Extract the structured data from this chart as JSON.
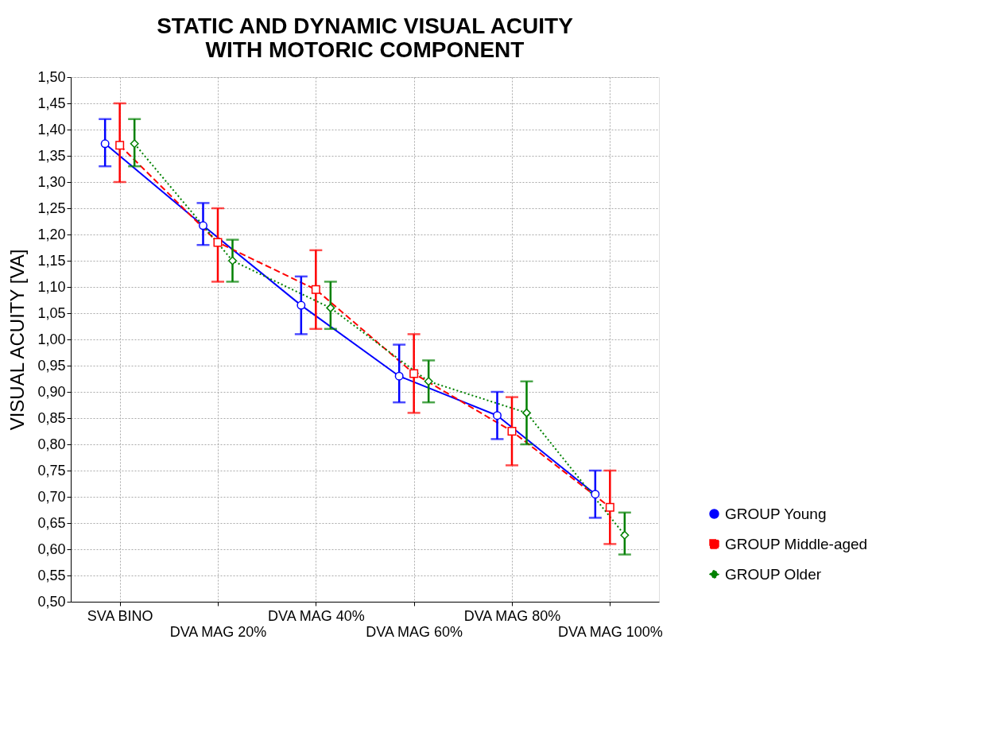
{
  "chart_data": {
    "type": "line",
    "title": "STATIC AND DYNAMIC VISUAL ACUITY\nWITH MOTORIC COMPONENT",
    "ylabel": "VISUAL ACUITY [VA]",
    "categories": [
      "SVA BINO",
      "DVA MAG 20%",
      "DVA MAG 40%",
      "DVA MAG 60%",
      "DVA MAG 80%",
      "DVA MAG 100%"
    ],
    "series": [
      {
        "name": "GROUP Young",
        "color": "#0000ff",
        "marker": "circle",
        "line_style": "solid",
        "values": [
          1.373,
          1.217,
          1.065,
          0.93,
          0.855,
          0.705
        ],
        "errors": [
          [
            1.33,
            1.42
          ],
          [
            1.18,
            1.26
          ],
          [
            1.01,
            1.12
          ],
          [
            0.88,
            0.99
          ],
          [
            0.81,
            0.9
          ],
          [
            0.66,
            0.75
          ]
        ]
      },
      {
        "name": "GROUP Middle-aged",
        "color": "#ff0000",
        "marker": "square",
        "line_style": "dashed",
        "values": [
          1.37,
          1.185,
          1.095,
          0.935,
          0.825,
          0.68
        ],
        "errors": [
          [
            1.3,
            1.45
          ],
          [
            1.11,
            1.25
          ],
          [
            1.02,
            1.17
          ],
          [
            0.86,
            1.01
          ],
          [
            0.76,
            0.89
          ],
          [
            0.61,
            0.75
          ]
        ]
      },
      {
        "name": "GROUP Older",
        "color": "#008000",
        "marker": "diamond",
        "line_style": "dotted",
        "values": [
          1.373,
          1.15,
          1.06,
          0.92,
          0.86,
          0.627
        ],
        "errors": [
          [
            1.33,
            1.42
          ],
          [
            1.11,
            1.19
          ],
          [
            1.02,
            1.11
          ],
          [
            0.88,
            0.96
          ],
          [
            0.8,
            0.92
          ],
          [
            0.59,
            0.67
          ]
        ]
      }
    ],
    "ylim": [
      0.5,
      1.5
    ],
    "yticks": [
      {
        "value": 0.5,
        "label": "0,50"
      },
      {
        "value": 0.55,
        "label": "0,55"
      },
      {
        "value": 0.6,
        "label": "0,60"
      },
      {
        "value": 0.65,
        "label": "0,65"
      },
      {
        "value": 0.7,
        "label": "0,70"
      },
      {
        "value": 0.75,
        "label": "0,75"
      },
      {
        "value": 0.8,
        "label": "0,80"
      },
      {
        "value": 0.85,
        "label": "0,85"
      },
      {
        "value": 0.9,
        "label": "0,90"
      },
      {
        "value": 0.95,
        "label": "0,95"
      },
      {
        "value": 1.0,
        "label": "1,00"
      },
      {
        "value": 1.05,
        "label": "1,05"
      },
      {
        "value": 1.1,
        "label": "1,10"
      },
      {
        "value": 1.15,
        "label": "1,15"
      },
      {
        "value": 1.2,
        "label": "1,20"
      },
      {
        "value": 1.25,
        "label": "1,25"
      },
      {
        "value": 1.3,
        "label": "1,30"
      },
      {
        "value": 1.35,
        "label": "1,35"
      },
      {
        "value": 1.4,
        "label": "1,40"
      },
      {
        "value": 1.45,
        "label": "1,45"
      },
      {
        "value": 1.5,
        "label": "1,50"
      }
    ],
    "grid": true,
    "legend": "bottom right"
  }
}
